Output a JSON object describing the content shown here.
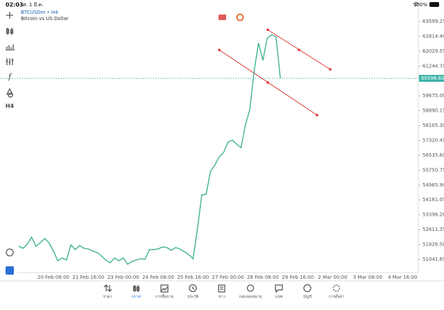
{
  "status_bar": {
    "time": "02:03",
    "date": "ศ. 1 มี.ค.",
    "battery": "100%"
  },
  "toolbar": {
    "timeframe": "H4"
  },
  "chart_data": {
    "type": "line",
    "symbol": "BTCUSDm • H4",
    "description": "Bitcoin vs US Dollar",
    "color": "#3cb38a",
    "categories": [
      null,
      null,
      null,
      null,
      null,
      null,
      null,
      null,
      "20 Feb 08:00",
      null,
      null,
      null,
      null,
      null,
      null,
      null,
      "21 Feb 16:00",
      null,
      null,
      null,
      null,
      null,
      null,
      null,
      "23 Feb 00:00",
      null,
      null,
      null,
      null,
      null,
      null,
      null,
      "24 Feb 08:00",
      null,
      null,
      null,
      null,
      null,
      null,
      null,
      "25 Feb 16:00",
      null,
      null,
      null,
      null,
      null,
      null,
      null,
      "27 Feb 00:00",
      null,
      null,
      null,
      null,
      null,
      null,
      null,
      "28 Feb 08:00",
      null,
      null,
      null,
      null,
      null,
      null,
      null,
      "29 Feb 16:00",
      null,
      null,
      null,
      null,
      null,
      null,
      null,
      "2 Mar 00:00",
      null,
      null,
      null,
      null,
      null,
      null,
      null,
      "3 Mar 08:00",
      null,
      null,
      null,
      null,
      null,
      null,
      null,
      "4 Mar 16:00",
      null,
      null,
      null
    ],
    "values": [
      51737,
      51628,
      51847,
      52213,
      51737,
      51920,
      52140,
      51920,
      51481,
      50969,
      51115,
      51005,
      51811,
      51554,
      51774,
      51628,
      51591,
      51481,
      51408,
      51225,
      51005,
      50859,
      51115,
      50969,
      51115,
      50785,
      50932,
      51005,
      51078,
      51042,
      51554,
      51554,
      51591,
      51701,
      51664,
      51518,
      51664,
      51591,
      51444,
      51298,
      51078,
      52653,
      54446,
      54483,
      55691,
      56021,
      56460,
      56680,
      57229,
      57339,
      57119,
      56936,
      58144,
      58950,
      61000,
      62464,
      61549,
      62720,
      62903,
      62794,
      60598.6,
      null,
      null,
      null,
      null,
      null,
      null,
      null,
      null,
      null,
      null,
      null,
      null,
      null,
      null,
      null,
      null,
      null,
      null,
      null,
      null,
      null,
      null,
      null,
      null,
      null,
      null,
      null,
      null,
      null,
      null,
      null
    ],
    "current_price": {
      "value": 60598.6,
      "label": "60598.60"
    },
    "ylim": [
      50346,
      64368
    ],
    "yticks": [
      63599.25,
      {
        "value": 62814.4,
        "label": "62814.40"
      },
      62029.55,
      {
        "value": 61244.7,
        "label": "61244.70"
      },
      {
        "value": 59675,
        "label": "59675.00"
      },
      58890.15,
      {
        "value": 58105.3,
        "label": "58105.30"
      },
      57320.45,
      {
        "value": 56535.6,
        "label": "56535.60"
      },
      55750.75,
      {
        "value": 54965.9,
        "label": "54965.90"
      },
      54181.05,
      {
        "value": 53396.2,
        "label": "53396.20"
      },
      52611.35,
      {
        "value": 51826.5,
        "label": "51826.50"
      },
      51041.65
    ]
  },
  "tabs": [
    "ราคา",
    "กราฟ",
    "การซื้อขาย",
    "ประวัติ",
    "ข่าว",
    "กล่องจดหมาย",
    "แชท",
    "บัญชี",
    "การตั้งค่า"
  ],
  "active_tab": 1
}
